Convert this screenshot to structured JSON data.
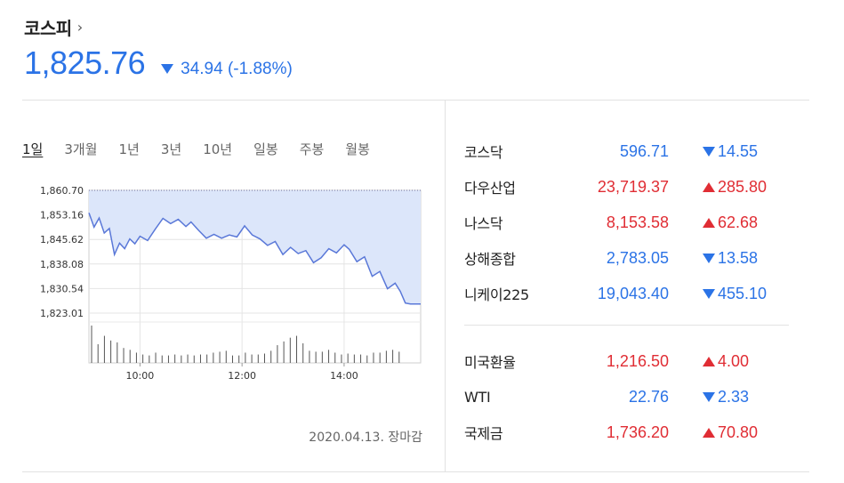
{
  "header": {
    "index_name": "코스피",
    "chevron": "›",
    "value": "1,825.76",
    "change": "34.94 (-1.88%)",
    "direction": "down"
  },
  "tabs": [
    "1일",
    "3개월",
    "1년",
    "3년",
    "10년",
    "일봉",
    "주봉",
    "월봉"
  ],
  "chart_data": {
    "type": "line",
    "title": "",
    "xlabel": "",
    "ylabel": "",
    "y_ticks": [
      "1,860.70",
      "1,853.16",
      "1,845.62",
      "1,838.08",
      "1,830.54",
      "1,823.01"
    ],
    "ylim": [
      1823.01,
      1860.7
    ],
    "x_ticks": [
      "10:00",
      "12:00",
      "14:00"
    ],
    "x_tick_hours": [
      10,
      12,
      14
    ],
    "xlim": [
      9.0,
      15.5
    ],
    "previous_close": 1860.7,
    "series": [
      {
        "x": [
          9.0,
          9.1,
          9.2,
          9.3,
          9.4,
          9.5,
          9.6,
          9.7,
          9.8,
          9.9,
          10.0,
          10.15,
          10.3,
          10.45,
          10.6,
          10.75,
          10.9,
          11.0,
          11.15,
          11.3,
          11.45,
          11.6,
          11.75,
          11.9,
          12.05,
          12.2,
          12.35,
          12.5,
          12.65,
          12.8,
          12.95,
          13.1,
          13.25,
          13.4,
          13.55,
          13.7,
          13.85,
          14.0,
          14.1,
          14.25,
          14.4,
          14.55,
          14.7,
          14.85,
          15.0,
          15.1,
          15.2,
          15.3,
          15.5
        ],
        "values": [
          1853.8,
          1849.4,
          1852.2,
          1847.6,
          1849.0,
          1841.0,
          1844.5,
          1842.8,
          1845.8,
          1844.3,
          1846.6,
          1845.3,
          1848.8,
          1852.1,
          1850.5,
          1851.8,
          1849.6,
          1851.0,
          1848.4,
          1846.0,
          1847.2,
          1846.0,
          1847.0,
          1846.4,
          1849.8,
          1847.0,
          1845.8,
          1843.8,
          1845.0,
          1841.0,
          1843.2,
          1841.3,
          1842.2,
          1838.5,
          1840.0,
          1842.8,
          1841.5,
          1844.0,
          1842.6,
          1838.8,
          1840.3,
          1834.3,
          1835.8,
          1830.5,
          1832.2,
          1829.7,
          1826.1,
          1825.8,
          1825.8
        ]
      }
    ],
    "volume": [
      40,
      20,
      29,
      24,
      22,
      16,
      14,
      11,
      9,
      8,
      11,
      8,
      8,
      9,
      8,
      9,
      8,
      9,
      9,
      11,
      12,
      13,
      8,
      8,
      11,
      9,
      9,
      10,
      13,
      19,
      23,
      27,
      29,
      21,
      13,
      12,
      12,
      14,
      11,
      9,
      10,
      9,
      9,
      8,
      11,
      11,
      13,
      14,
      12
    ]
  },
  "chart_date": "2020.04.13. 장마감",
  "markets": [
    {
      "name": "코스닥",
      "value": "596.71",
      "change": "14.55",
      "direction": "down"
    },
    {
      "name": "다우산업",
      "value": "23,719.37",
      "change": "285.80",
      "direction": "up"
    },
    {
      "name": "나스닥",
      "value": "8,153.58",
      "change": "62.68",
      "direction": "up"
    },
    {
      "name": "상해종합",
      "value": "2,783.05",
      "change": "13.58",
      "direction": "down"
    },
    {
      "name": "니케이225",
      "value": "19,043.40",
      "change": "455.10",
      "direction": "down"
    }
  ],
  "fx": [
    {
      "name": "미국환율",
      "value": "1,216.50",
      "change": "4.00",
      "direction": "up"
    },
    {
      "name": "WTI",
      "value": "22.76",
      "change": "2.33",
      "direction": "down"
    },
    {
      "name": "국제금",
      "value": "1,736.20",
      "change": "70.80",
      "direction": "up"
    }
  ],
  "colors": {
    "up": "#e02d34",
    "down": "#2b73e6",
    "line": "#5a78d8",
    "fill": "#dce6fa",
    "grid": "#e4e4e4",
    "volume": "#555555"
  }
}
